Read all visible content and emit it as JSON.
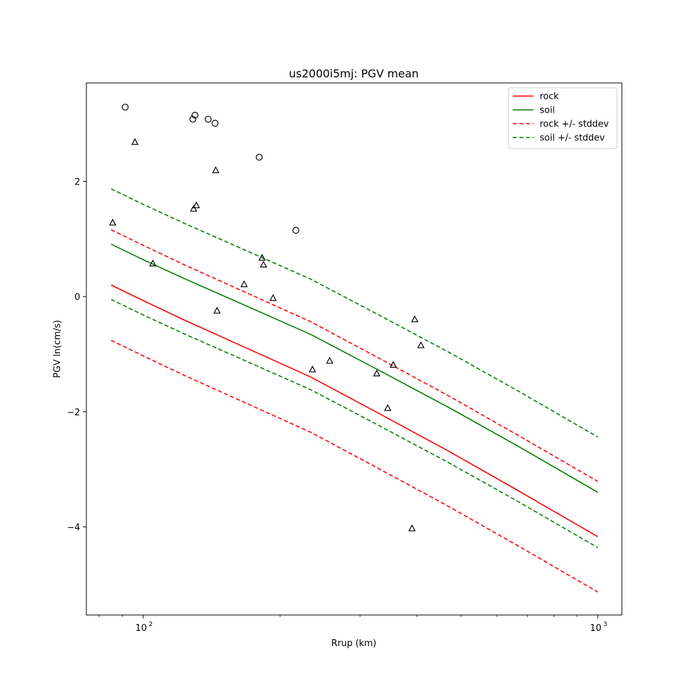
{
  "chart_data": {
    "type": "line",
    "title": "us2000i5mj: PGV mean",
    "xlabel": "Rrup (km)",
    "ylabel": "PGV ln(cm/s)",
    "xscale": "log",
    "xlim": [
      75,
      1130
    ],
    "ylim": [
      -5.53,
      3.71
    ],
    "grid": false,
    "legend_placement": "top-right",
    "x_ticks": [
      {
        "value": 100,
        "base": "10",
        "exp": "2"
      },
      {
        "value": 1000,
        "base": "10",
        "exp": "3"
      }
    ],
    "x_minor_ticks": [
      80,
      90,
      200,
      300,
      400,
      500,
      600,
      700,
      800,
      900
    ],
    "y_ticks": [
      {
        "value": -4,
        "label": "−4"
      },
      {
        "value": -2,
        "label": "−2"
      },
      {
        "value": 0,
        "label": "0"
      },
      {
        "value": 2,
        "label": "2"
      }
    ],
    "x": [
      85,
      100,
      122.5,
      165,
      234,
      330,
      471,
      668,
      1000
    ],
    "series": [
      {
        "name": "rock",
        "color": "#ff0000",
        "dash": false,
        "values": [
          0.2,
          -0.07,
          -0.4,
          -0.86,
          -1.4,
          -2.03,
          -2.69,
          -3.37,
          -4.17
        ]
      },
      {
        "name": "soil",
        "color": "#008000",
        "dash": false,
        "values": [
          0.91,
          0.64,
          0.32,
          -0.13,
          -0.66,
          -1.28,
          -1.93,
          -2.6,
          -3.4
        ]
      },
      {
        "name": "rock +/- stddev",
        "color": "#ff0000",
        "dash": true,
        "values": [
          1.16,
          0.89,
          0.56,
          0.1,
          -0.44,
          -1.07,
          -1.73,
          -2.41,
          -3.21
        ],
        "lower": [
          -0.76,
          -1.03,
          -1.36,
          -1.82,
          -2.36,
          -2.99,
          -3.65,
          -4.33,
          -5.13
        ]
      },
      {
        "name": "soil +/- stddev",
        "color": "#008000",
        "dash": true,
        "values": [
          1.87,
          1.6,
          1.28,
          0.83,
          0.3,
          -0.32,
          -0.97,
          -1.64,
          -2.44
        ],
        "lower": [
          -0.05,
          -0.32,
          -0.64,
          -1.09,
          -1.62,
          -2.24,
          -2.89,
          -3.56,
          -4.36
        ]
      }
    ],
    "scatter_circles": [
      [
        91.3,
        3.29
      ],
      [
        128.6,
        3.08
      ],
      [
        130.0,
        3.15
      ],
      [
        139.0,
        3.08
      ],
      [
        143.9,
        3.01
      ],
      [
        180.0,
        2.42
      ],
      [
        216.7,
        1.15
      ]
    ],
    "scatter_triangles": [
      [
        95.9,
        2.68
      ],
      [
        85.7,
        1.28
      ],
      [
        105.0,
        0.57
      ],
      [
        129.1,
        1.52
      ],
      [
        130.9,
        1.58
      ],
      [
        144.4,
        2.19
      ],
      [
        145.4,
        -0.25
      ],
      [
        166.7,
        0.21
      ],
      [
        182.6,
        0.67
      ],
      [
        183.9,
        0.55
      ],
      [
        193.1,
        -0.03
      ],
      [
        235.7,
        -1.27
      ],
      [
        257.2,
        -1.12
      ],
      [
        326.4,
        -1.34
      ],
      [
        345.1,
        -1.94
      ],
      [
        354.9,
        -1.19
      ],
      [
        390.2,
        -4.03
      ],
      [
        395.7,
        -0.4
      ],
      [
        408.3,
        -0.85
      ]
    ]
  }
}
